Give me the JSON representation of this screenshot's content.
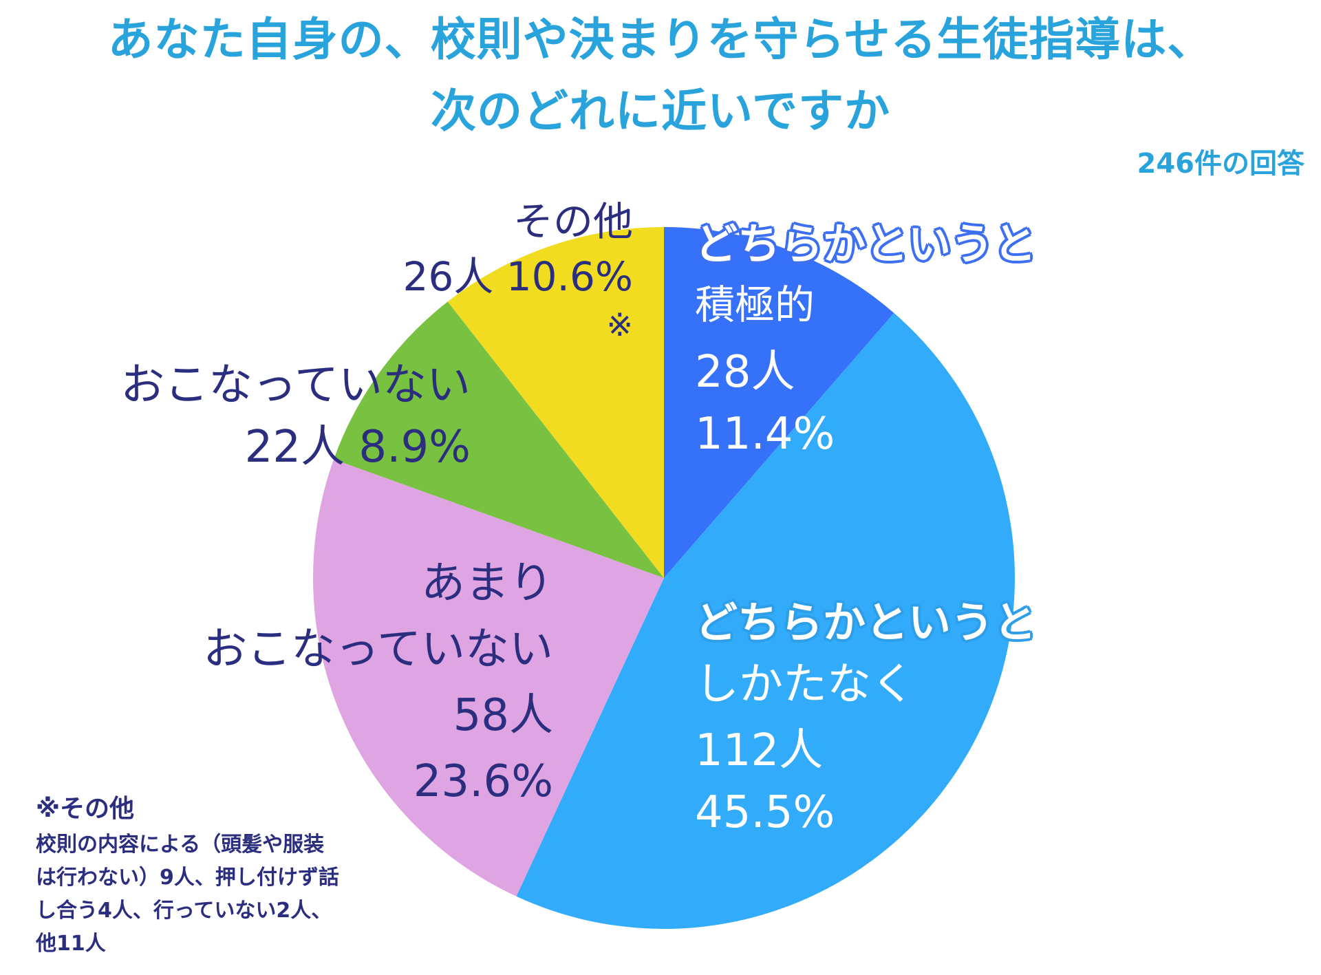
{
  "title_line1": "あなた自身の、校則や決まりを守らせる生徒指導は、",
  "title_line2": "次のどれに近いですか",
  "response_count": "246件の回答",
  "labels": {
    "s1": {
      "line1": "どちらかというと",
      "line2": "積極的",
      "count": "28人",
      "pct": "11.4%"
    },
    "s2": {
      "line1": "どちらかというと",
      "line2": "しかたなく",
      "count": "112人",
      "pct": "45.5%"
    },
    "s3": {
      "line1": "あまり",
      "line2": "おこなっていない",
      "count": "58人",
      "pct": "23.6%"
    },
    "s4": {
      "line1": "おこなっていない",
      "line2": "22人 8.9%"
    },
    "s5": {
      "line1": "その他",
      "line2": "26人 10.6%",
      "mark": "※"
    }
  },
  "footnote": {
    "title": "※その他",
    "line1": "校則の内容による（頭髪や服装",
    "line2": "は行わない）9人、押し付けず話",
    "line3": "し合う4人、行っていない2人、",
    "line4": "他11人"
  },
  "chart_data": {
    "type": "pie",
    "title": "あなた自身の、校則や決まりを守らせる生徒指導は、次のどれに近いですか",
    "total_responses": 246,
    "slices": [
      {
        "label": "どちらかというと積極的",
        "value": 28,
        "percent": 11.4,
        "color": "#3671fa"
      },
      {
        "label": "どちらかというとしかたなく",
        "value": 112,
        "percent": 45.5,
        "color": "#32acfa"
      },
      {
        "label": "あまりおこなっていない",
        "value": 58,
        "percent": 23.6,
        "color": "#dea5e2"
      },
      {
        "label": "おこなっていない",
        "value": 22,
        "percent": 8.9,
        "color": "#79c141"
      },
      {
        "label": "その他",
        "value": 26,
        "percent": 10.6,
        "color": "#f1dc20"
      }
    ],
    "start_angle": "12 o'clock",
    "direction": "clockwise"
  }
}
